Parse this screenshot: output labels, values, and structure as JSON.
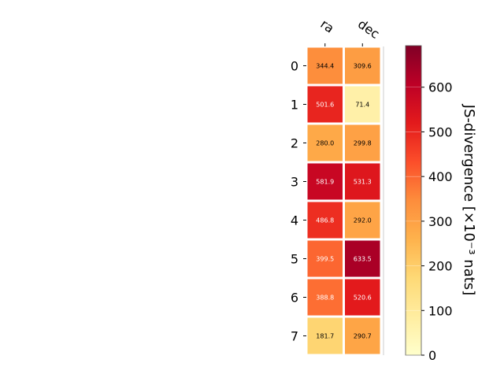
{
  "chart_data": {
    "type": "heatmap",
    "columns": [
      "ra",
      "dec"
    ],
    "rows": [
      "0",
      "1",
      "2",
      "3",
      "4",
      "5",
      "6",
      "7"
    ],
    "values": [
      [
        344.4,
        309.6
      ],
      [
        501.6,
        71.4
      ],
      [
        280.0,
        299.8
      ],
      [
        581.9,
        531.3
      ],
      [
        486.8,
        292.0
      ],
      [
        399.5,
        633.5
      ],
      [
        388.8,
        520.6
      ],
      [
        181.7,
        290.7
      ]
    ],
    "cell_labels": [
      [
        "344.4",
        "309.6"
      ],
      [
        "501.6",
        "71.4"
      ],
      [
        "280.0",
        "299.8"
      ],
      [
        "581.9",
        "531.3"
      ],
      [
        "486.8",
        "292.0"
      ],
      [
        "399.5",
        "633.5"
      ],
      [
        "388.8",
        "520.6"
      ],
      [
        "181.7",
        "290.7"
      ]
    ],
    "colorbar": {
      "label": "JS-divergence [×10⁻³ nats]",
      "range": [
        0,
        693
      ],
      "ticks": [
        "0",
        "100",
        "200",
        "300",
        "400",
        "500",
        "600"
      ],
      "colormap": "YlOrRd"
    },
    "colors": {
      "grid_line": "#ffffff",
      "frame": "#000000"
    }
  }
}
